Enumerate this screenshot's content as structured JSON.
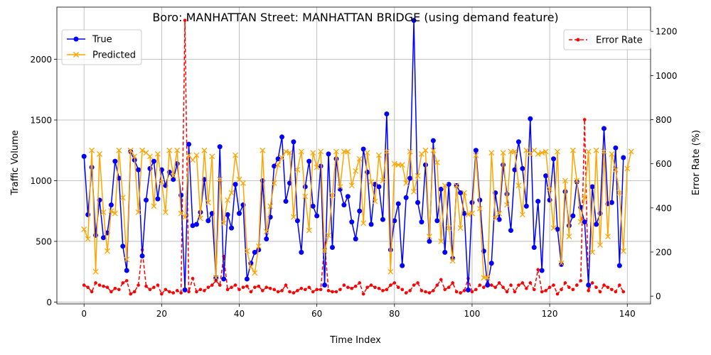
{
  "chart_data": {
    "type": "line",
    "title": "Boro: MANHATTAN Street: MANHATTAN BRIDGE (using demand feature)",
    "xlabel": "Time Index",
    "ylabel": "Traffic Volume",
    "y2label": "Error Rate (%)",
    "xlim": [
      -7,
      146
    ],
    "ylim": [
      -15,
      2430
    ],
    "y2lim": [
      -35,
      1310
    ],
    "xticks": [
      0,
      20,
      40,
      60,
      80,
      100,
      120,
      140
    ],
    "yticks": [
      0,
      500,
      1000,
      1500,
      2000
    ],
    "y2ticks": [
      0,
      200,
      400,
      600,
      800,
      1000,
      1200
    ],
    "grid": true,
    "legend_left": "upper-left",
    "legend_right": "upper-right",
    "series": [
      {
        "name": "True",
        "axis": "left",
        "color": "#0000ff",
        "marker": "circle",
        "linestyle": "solid",
        "values": [
          1200,
          720,
          1110,
          550,
          840,
          530,
          570,
          800,
          1160,
          1020,
          460,
          260,
          1240,
          1170,
          1090,
          380,
          840,
          1100,
          1160,
          850,
          1090,
          960,
          1070,
          1010,
          1140,
          880,
          100,
          1300,
          630,
          640,
          740,
          1010,
          670,
          730,
          200,
          1280,
          190,
          720,
          610,
          970,
          730,
          800,
          190,
          320,
          410,
          430,
          1000,
          520,
          700,
          1120,
          1180,
          1360,
          830,
          980,
          1320,
          670,
          410,
          950,
          1160,
          790,
          710,
          1120,
          140,
          1220,
          450,
          1180,
          930,
          800,
          870,
          660,
          520,
          750,
          1260,
          1070,
          640,
          970,
          950,
          680,
          1550,
          430,
          670,
          810,
          300,
          860,
          1020,
          2320,
          820,
          660,
          1130,
          500,
          1330,
          670,
          930,
          410,
          970,
          360,
          960,
          900,
          730,
          100,
          820,
          1250,
          840,
          420,
          140,
          320,
          900,
          680,
          1130,
          890,
          590,
          1090,
          1320,
          1100,
          790,
          1510,
          450,
          830,
          260,
          1040,
          840,
          1180,
          600,
          310,
          910,
          630,
          710,
          990,
          780,
          660,
          140,
          950,
          640,
          730,
          1430,
          810,
          820,
          1270,
          300,
          1190
        ]
      },
      {
        "name": "Predicted",
        "axis": "left",
        "color": "#ffa500",
        "marker": "x",
        "linestyle": "solid",
        "values": [
          600,
          520,
          1250,
          250,
          1220,
          740,
          420,
          750,
          730,
          1250,
          860,
          350,
          1250,
          1200,
          740,
          1250,
          1230,
          1200,
          790,
          1220,
          990,
          740,
          1250,
          1040,
          1250,
          730,
          700,
          1210,
          1170,
          1210,
          690,
          1250,
          820,
          1200,
          200,
          1010,
          650,
          840,
          900,
          1210,
          1010,
          980,
          420,
          290,
          240,
          460,
          1250,
          580,
          790,
          980,
          1130,
          1190,
          1240,
          1230,
          700,
          1090,
          1240,
          870,
          590,
          1230,
          1110,
          1240,
          420,
          550,
          880,
          1240,
          950,
          1240,
          1240,
          960,
          1080,
          1180,
          650,
          1230,
          990,
          830,
          1210,
          1000,
          1240,
          250,
          1140,
          1130,
          1130,
          980,
          1240,
          910,
          1040,
          1220,
          1250,
          540,
          1250,
          1150,
          500,
          960,
          610,
          340,
          960,
          610,
          900,
          720,
          730,
          1210,
          770,
          200,
          200,
          1230,
          690,
          730,
          1230,
          800,
          1240,
          1240,
          960,
          720,
          1250,
          1220,
          1250,
          1220,
          1230,
          1240,
          930,
          610,
          1240,
          320,
          1000,
          540,
          1250,
          1000,
          660,
          860,
          1240,
          410,
          1250,
          470,
          1240,
          540,
          1220,
          1090,
          900,
          420,
          1100,
          1240
        ]
      },
      {
        "name": "Error Rate",
        "axis": "right",
        "color": "#ff0000",
        "marker": "dot",
        "linestyle": "dashed",
        "values": [
          50,
          40,
          20,
          60,
          50,
          45,
          40,
          20,
          35,
          30,
          60,
          70,
          10,
          20,
          50,
          210,
          45,
          30,
          40,
          50,
          10,
          30,
          20,
          15,
          25,
          15,
          1250,
          20,
          80,
          20,
          30,
          25,
          40,
          50,
          70,
          50,
          180,
          30,
          40,
          50,
          30,
          40,
          45,
          20,
          40,
          45,
          25,
          40,
          35,
          30,
          20,
          25,
          50,
          20,
          15,
          25,
          35,
          30,
          40,
          20,
          30,
          30,
          240,
          25,
          20,
          20,
          30,
          50,
          40,
          35,
          45,
          60,
          10,
          40,
          50,
          40,
          35,
          25,
          30,
          50,
          60,
          40,
          30,
          15,
          25,
          50,
          60,
          25,
          20,
          15,
          25,
          50,
          75,
          30,
          40,
          60,
          20,
          15,
          25,
          80,
          20,
          30,
          50,
          40,
          60,
          50,
          40,
          60,
          40,
          20,
          50,
          20,
          50,
          60,
          35,
          60,
          30,
          120,
          20,
          25,
          40,
          50,
          10,
          30,
          60,
          40,
          30,
          50,
          70,
          800,
          25,
          60,
          40,
          20,
          50,
          40,
          30,
          20,
          50,
          20
        ]
      }
    ]
  }
}
